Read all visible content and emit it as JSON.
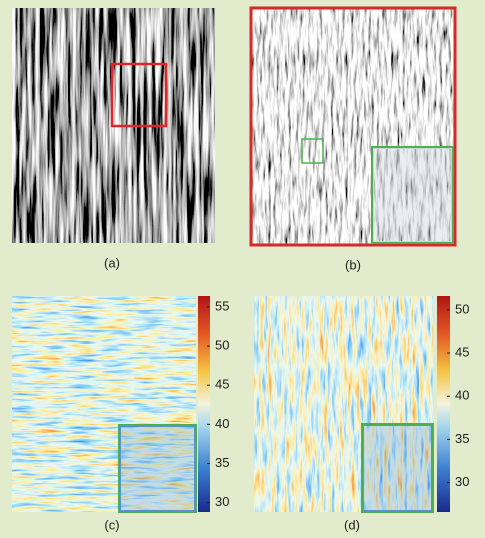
{
  "panels": [
    {
      "label": "(a)"
    },
    {
      "label": "(b)"
    },
    {
      "label": "(c)",
      "colorbar": {
        "clim": [
          28.8,
          56.4
        ],
        "ticks": [
          30,
          35,
          40,
          45,
          50,
          55
        ]
      }
    },
    {
      "label": "(d)",
      "colorbar": {
        "clim": [
          26.6,
          51.6
        ],
        "ticks": [
          30,
          35,
          40,
          45,
          50
        ]
      }
    }
  ]
}
